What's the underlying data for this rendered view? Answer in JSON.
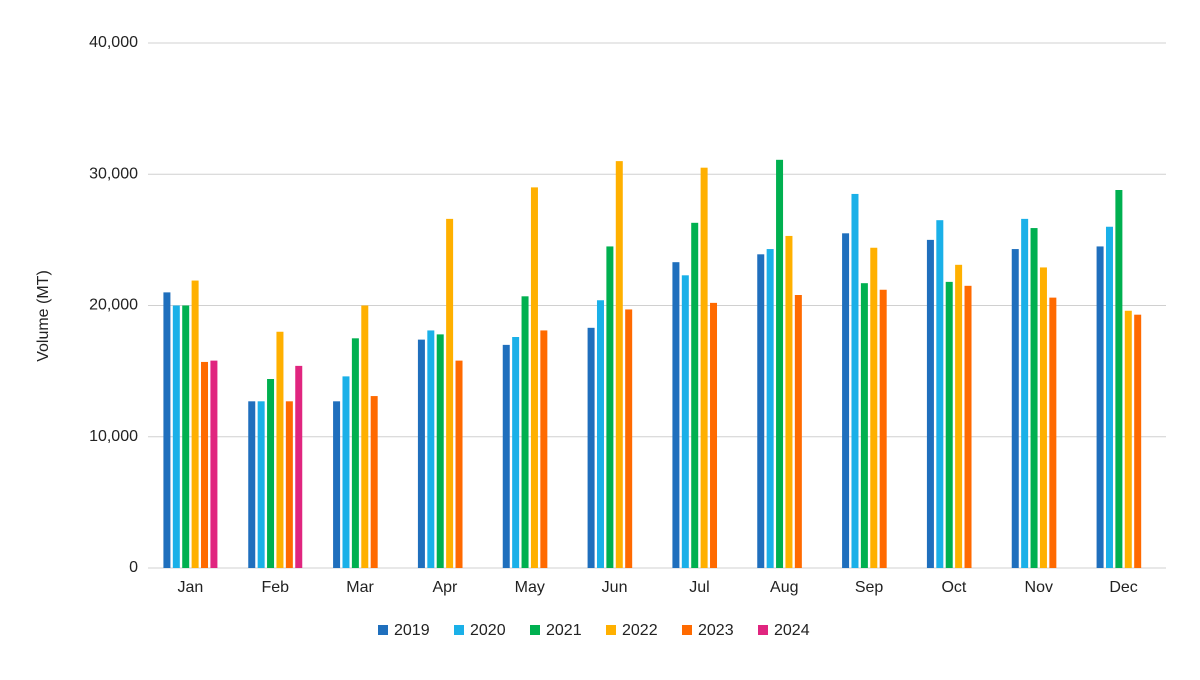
{
  "chart_data": {
    "type": "bar",
    "y_label": "Volume (MT)",
    "categories": [
      "Jan",
      "Feb",
      "Mar",
      "Apr",
      "May",
      "Jun",
      "Jul",
      "Aug",
      "Sep",
      "Oct",
      "Nov",
      "Dec"
    ],
    "series": [
      {
        "name": "2019",
        "color": "#1f6fbd",
        "values": [
          21000,
          12700,
          12700,
          17400,
          17000,
          18300,
          23300,
          23900,
          25500,
          25000,
          24300,
          24500
        ]
      },
      {
        "name": "2020",
        "color": "#1ab0e8",
        "values": [
          20000,
          12700,
          14600,
          18100,
          17600,
          20400,
          22300,
          24300,
          28500,
          26500,
          26600,
          26000
        ]
      },
      {
        "name": "2021",
        "color": "#00b050",
        "values": [
          20000,
          14400,
          17500,
          17800,
          20700,
          24500,
          26300,
          31100,
          21700,
          21800,
          25900,
          28800
        ]
      },
      {
        "name": "2022",
        "color": "#ffb000",
        "values": [
          21900,
          18000,
          20000,
          26600,
          29000,
          31000,
          30500,
          25300,
          24400,
          23100,
          22900,
          19600
        ]
      },
      {
        "name": "2023",
        "color": "#ff6a00",
        "values": [
          15700,
          12700,
          13100,
          15800,
          18100,
          19700,
          20200,
          20800,
          21200,
          21500,
          20600,
          19300
        ]
      },
      {
        "name": "2024",
        "color": "#e0257f",
        "values": [
          15800,
          15400,
          null,
          null,
          null,
          null,
          null,
          null,
          null,
          null,
          null,
          null
        ]
      }
    ],
    "ylim": [
      0,
      40000
    ],
    "yticks": [
      0,
      {
        "value": 10000,
        "label": "10,000"
      },
      {
        "value": 20000,
        "label": "20,000"
      },
      {
        "value": 30000,
        "label": "30,000"
      },
      {
        "value": 40000,
        "label": "40,000"
      }
    ],
    "grid": true,
    "legend": "bottom"
  }
}
